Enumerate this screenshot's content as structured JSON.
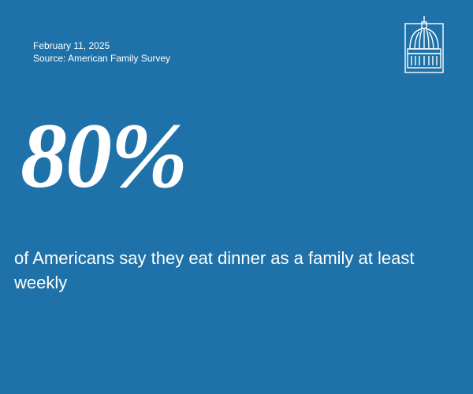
{
  "header": {
    "date": "February 11, 2025",
    "source": "Source: American Family Survey"
  },
  "stat": {
    "value": "80%",
    "description": "of Americans say they eat dinner as a family at least weekly"
  }
}
